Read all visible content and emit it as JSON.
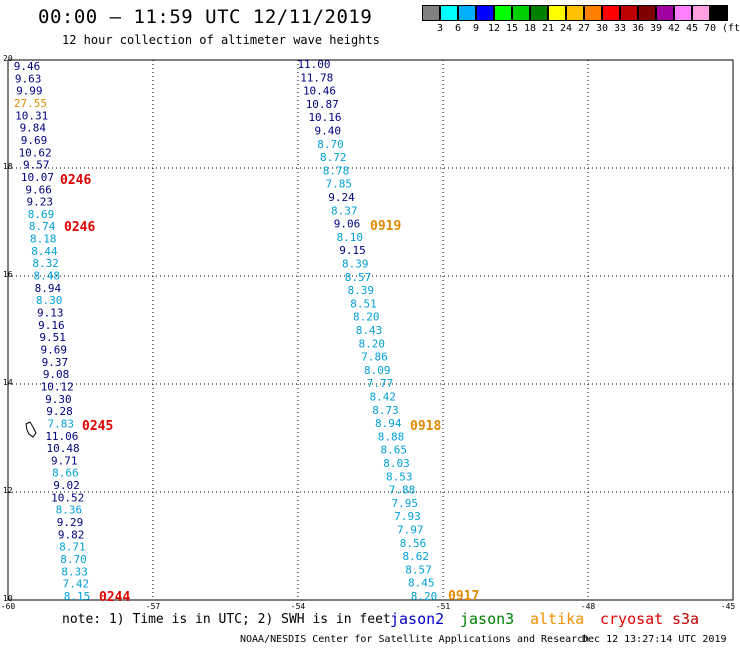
{
  "header": {
    "title": "00:00 – 11:59 UTC 12/11/2019",
    "subtitle": "12 hour collection of altimeter wave heights"
  },
  "colorbar": {
    "colors": [
      "#808080",
      "#00ffff",
      "#00b0ff",
      "#0000ff",
      "#00ff00",
      "#00d000",
      "#008000",
      "#ffff00",
      "#ffc000",
      "#ff8000",
      "#ff0000",
      "#c00000",
      "#800000",
      "#a000a0",
      "#ff80ff",
      "#ff9ee0",
      "#000000"
    ],
    "labels": [
      "3",
      "6",
      "9",
      "12",
      "15",
      "18",
      "21",
      "24",
      "27",
      "30",
      "33",
      "36",
      "39",
      "42",
      "45",
      "70"
    ],
    "unit": "(ft)"
  },
  "map": {
    "lon_range": [
      -60,
      -45
    ],
    "lat_range": [
      10,
      20
    ],
    "lon_ticks": [
      "-60",
      "-57",
      "-54",
      "-51",
      "-48",
      "-45"
    ],
    "lat_ticks": [
      "20",
      "18",
      "16",
      "14",
      "12",
      "10"
    ],
    "track_west": [
      {
        "v": "9.46",
        "c": "#000080"
      },
      {
        "v": "9.63",
        "c": "#000080"
      },
      {
        "v": "9.99",
        "c": "#000080"
      },
      {
        "v": "27.55",
        "c": "#e08a00"
      },
      {
        "v": "10.31",
        "c": "#000080"
      },
      {
        "v": "9.84",
        "c": "#000080"
      },
      {
        "v": "9.69",
        "c": "#000080"
      },
      {
        "v": "10.62",
        "c": "#000080"
      },
      {
        "v": "9.57",
        "c": "#000080"
      },
      {
        "v": "10.07",
        "c": "#000080"
      },
      {
        "v": "9.66",
        "c": "#000080"
      },
      {
        "v": "9.23",
        "c": "#000080"
      },
      {
        "v": "8.69",
        "c": "#00a0d8"
      },
      {
        "v": "8.74",
        "c": "#00a0d8"
      },
      {
        "v": "8.18",
        "c": "#00a0d8"
      },
      {
        "v": "8.44",
        "c": "#00a0d8"
      },
      {
        "v": "8.32",
        "c": "#00a0d8"
      },
      {
        "v": "8.48",
        "c": "#00a0d8"
      },
      {
        "v": "8.94",
        "c": "#000080"
      },
      {
        "v": "8.30",
        "c": "#00a0d8"
      },
      {
        "v": "9.13",
        "c": "#000080"
      },
      {
        "v": "9.16",
        "c": "#000080"
      },
      {
        "v": "9.51",
        "c": "#000080"
      },
      {
        "v": "9.69",
        "c": "#000080"
      },
      {
        "v": "9.37",
        "c": "#000080"
      },
      {
        "v": "9.08",
        "c": "#000080"
      },
      {
        "v": "10.12",
        "c": "#000080"
      },
      {
        "v": "9.30",
        "c": "#000080"
      },
      {
        "v": "9.28",
        "c": "#000080"
      },
      {
        "v": "7.83",
        "c": "#00a0d8"
      },
      {
        "v": "11.06",
        "c": "#000080"
      },
      {
        "v": "10.48",
        "c": "#000080"
      },
      {
        "v": "9.71",
        "c": "#000080"
      },
      {
        "v": "8.66",
        "c": "#00a0d8"
      },
      {
        "v": "9.02",
        "c": "#000080"
      },
      {
        "v": "10.52",
        "c": "#000080"
      },
      {
        "v": "8.36",
        "c": "#00a0d8"
      },
      {
        "v": "9.29",
        "c": "#000080"
      },
      {
        "v": "9.82",
        "c": "#000080"
      },
      {
        "v": "8.71",
        "c": "#00a0d8"
      },
      {
        "v": "8.70",
        "c": "#00a0d8"
      },
      {
        "v": "8.33",
        "c": "#00a0d8"
      },
      {
        "v": "7.42",
        "c": "#00a0d8"
      },
      {
        "v": "8.15",
        "c": "#00a0d8"
      }
    ],
    "track_east": [
      {
        "v": "11.00",
        "c": "#000080"
      },
      {
        "v": "11.78",
        "c": "#000080"
      },
      {
        "v": "10.46",
        "c": "#000080"
      },
      {
        "v": "10.87",
        "c": "#000080"
      },
      {
        "v": "10.16",
        "c": "#000080"
      },
      {
        "v": "9.40",
        "c": "#000080"
      },
      {
        "v": "8.70",
        "c": "#00a0d8"
      },
      {
        "v": "8.72",
        "c": "#00a0d8"
      },
      {
        "v": "8.78",
        "c": "#00a0d8"
      },
      {
        "v": "7.85",
        "c": "#00a0d8"
      },
      {
        "v": "9.24",
        "c": "#000080"
      },
      {
        "v": "8.37",
        "c": "#00a0d8"
      },
      {
        "v": "9.06",
        "c": "#000080"
      },
      {
        "v": "8.10",
        "c": "#00a0d8"
      },
      {
        "v": "9.15",
        "c": "#000080"
      },
      {
        "v": "8.39",
        "c": "#00a0d8"
      },
      {
        "v": "8.57",
        "c": "#00a0d8"
      },
      {
        "v": "8.39",
        "c": "#00a0d8"
      },
      {
        "v": "8.51",
        "c": "#00a0d8"
      },
      {
        "v": "8.20",
        "c": "#00a0d8"
      },
      {
        "v": "8.43",
        "c": "#00a0d8"
      },
      {
        "v": "8.20",
        "c": "#00a0d8"
      },
      {
        "v": "7.86",
        "c": "#00a0d8"
      },
      {
        "v": "8.09",
        "c": "#00a0d8"
      },
      {
        "v": "7.77",
        "c": "#00a0d8"
      },
      {
        "v": "8.42",
        "c": "#00a0d8"
      },
      {
        "v": "8.73",
        "c": "#00a0d8"
      },
      {
        "v": "8.94",
        "c": "#00a0d8"
      },
      {
        "v": "8.88",
        "c": "#00a0d8"
      },
      {
        "v": "8.65",
        "c": "#00a0d8"
      },
      {
        "v": "8.03",
        "c": "#00a0d8"
      },
      {
        "v": "8.53",
        "c": "#00a0d8"
      },
      {
        "v": "7.88",
        "c": "#00a0d8"
      },
      {
        "v": "7.95",
        "c": "#00a0d8"
      },
      {
        "v": "7.93",
        "c": "#00a0d8"
      },
      {
        "v": "7.97",
        "c": "#00a0d8"
      },
      {
        "v": "8.56",
        "c": "#00a0d8"
      },
      {
        "v": "8.62",
        "c": "#00a0d8"
      },
      {
        "v": "8.57",
        "c": "#00a0d8"
      },
      {
        "v": "8.45",
        "c": "#00a0d8"
      },
      {
        "v": "8.20",
        "c": "#00a0d8"
      }
    ],
    "time_labels": [
      {
        "t": "0246",
        "c": "#e00000"
      },
      {
        "t": "0246",
        "c": "#e00000"
      },
      {
        "t": "0245",
        "c": "#e00000"
      },
      {
        "t": "0244",
        "c": "#e00000"
      },
      {
        "t": "0919",
        "c": "#e08a00"
      },
      {
        "t": "0918",
        "c": "#e08a00"
      },
      {
        "t": "0917",
        "c": "#e08a00"
      }
    ]
  },
  "footer": {
    "note": "note: 1) Time is in UTC; 2) SWH is in feet",
    "satellites": [
      {
        "name": "jason2",
        "color": "#0000cc"
      },
      {
        "name": "jason3",
        "color": "#008000"
      },
      {
        "name": "altika",
        "color": "#f09000"
      },
      {
        "name": "cryosat",
        "color": "#e00000"
      },
      {
        "name": "s3a",
        "color": "#c00000"
      }
    ],
    "credit": "NOAA/NESDIS Center for Satellite Applications and Research",
    "timestamp": "Dec 12 13:27:14 UTC 2019"
  }
}
